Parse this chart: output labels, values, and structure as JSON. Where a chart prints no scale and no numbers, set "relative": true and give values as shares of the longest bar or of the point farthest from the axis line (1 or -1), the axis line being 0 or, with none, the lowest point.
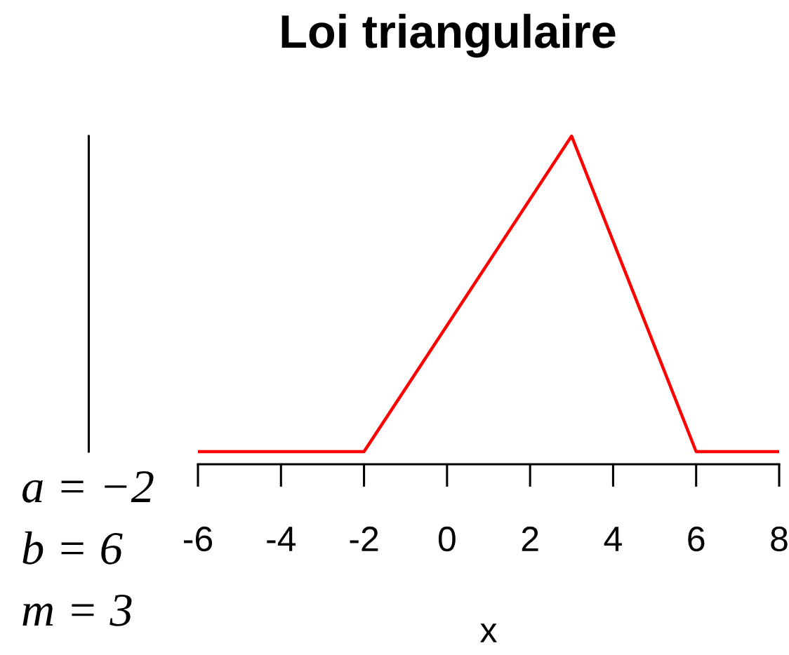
{
  "chart_data": {
    "type": "line",
    "title": "Loi triangulaire",
    "xlabel": "x",
    "x": [
      -6,
      -2,
      3,
      6,
      8
    ],
    "series": [
      {
        "color": "#ff0000",
        "values": [
          0,
          0,
          1,
          0,
          0
        ]
      }
    ],
    "relative": true,
    "xlim": [
      -6,
      8
    ],
    "xticks": [
      -6,
      -4,
      -2,
      0,
      2,
      4,
      6,
      8
    ],
    "annotations": [
      "a = −2",
      "b = 6",
      "m = 3"
    ],
    "marker": "none",
    "line_style": "solid"
  }
}
